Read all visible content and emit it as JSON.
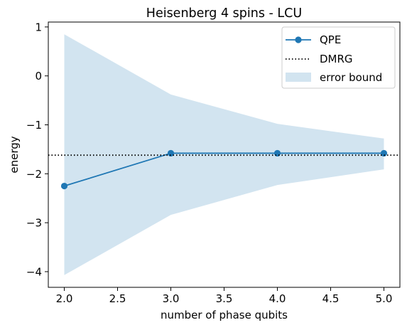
{
  "chart_data": {
    "type": "line",
    "title": "Heisenberg 4 spins - LCU",
    "xlabel": "number of phase qubits",
    "ylabel": "energy",
    "xlim": [
      1.85,
      5.15
    ],
    "ylim": [
      -4.32,
      1.1
    ],
    "xticks": [
      2.0,
      2.5,
      3.0,
      3.5,
      4.0,
      4.5,
      5.0
    ],
    "xtick_labels": [
      "2.0",
      "2.5",
      "3.0",
      "3.5",
      "4.0",
      "4.5",
      "5.0"
    ],
    "yticks": [
      -4,
      -3,
      -2,
      -1,
      0,
      1
    ],
    "ytick_labels": [
      "−4",
      "−3",
      "−2",
      "−1",
      "0",
      "1"
    ],
    "grid": false,
    "legend_position": "top-right",
    "series": [
      {
        "name": "QPE",
        "kind": "line-marker",
        "color": "#1f77b4",
        "x": [
          2.0,
          3.0,
          4.0,
          5.0
        ],
        "y": [
          -2.25,
          -1.58,
          -1.58,
          -1.58
        ]
      },
      {
        "name": "DMRG",
        "kind": "hline-dotted",
        "color": "#000000",
        "y": -1.62
      },
      {
        "name": "error bound",
        "kind": "band",
        "color": "#1f77b4",
        "opacity": 0.2,
        "x": [
          2.0,
          3.0,
          4.0,
          5.0
        ],
        "upper": [
          0.85,
          -0.38,
          -0.98,
          -1.28
        ],
        "lower": [
          -4.07,
          -2.84,
          -2.23,
          -1.91
        ]
      }
    ]
  }
}
